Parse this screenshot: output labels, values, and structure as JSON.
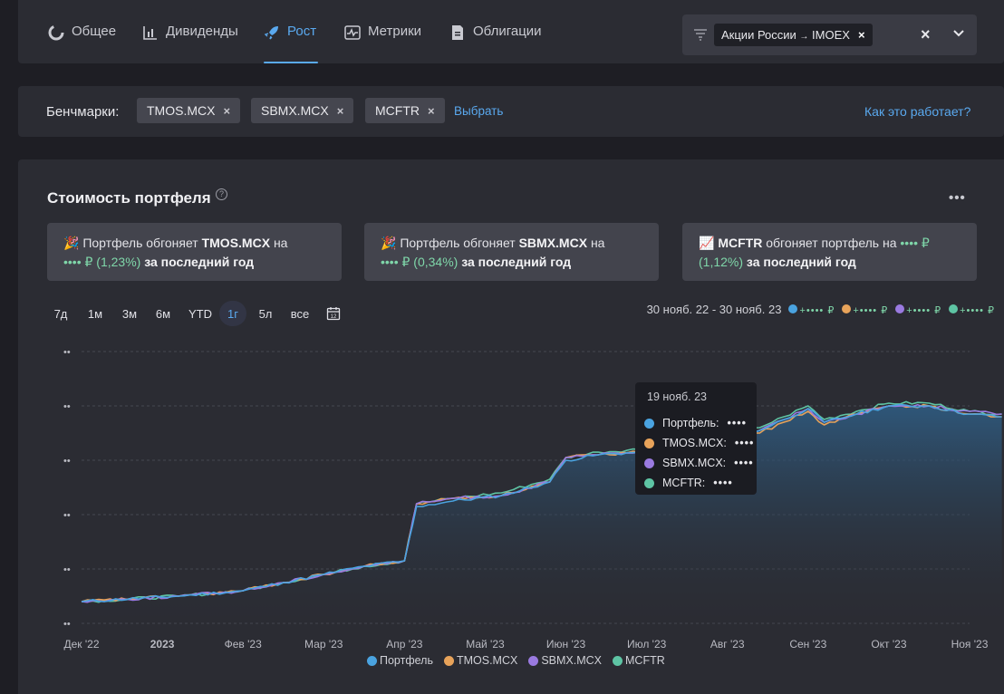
{
  "nav": {
    "tabs": [
      {
        "label": "Общее",
        "icon": "donut-chart-icon"
      },
      {
        "label": "Дивиденды",
        "icon": "bar-chart-icon"
      },
      {
        "label": "Рост",
        "icon": "rocket-icon"
      },
      {
        "label": "Метрики",
        "icon": "pulse-icon"
      },
      {
        "label": "Облигации",
        "icon": "document-icon"
      }
    ],
    "active_tab": "Рост",
    "filter": {
      "label": "Акции России",
      "arrow": "→",
      "suffix": "IMOEX",
      "chip_close": "×",
      "clear": "×"
    }
  },
  "benchmarks": {
    "label": "Бенчмарки:",
    "chips": [
      "TMOS.MCX",
      "SBMX.MCX",
      "MCFTR"
    ],
    "chip_close": "×",
    "select_link": "Выбрать",
    "help_link": "Как это работает?"
  },
  "portfolio": {
    "title": "Стоимость портфеля",
    "help": "?",
    "more": "•••",
    "cards": [
      {
        "emoji": "🎉",
        "prefix": "Портфель обгоняет",
        "ticker": "TMOS.MCX",
        "mid": "на",
        "amount": "•••• ₽",
        "pct": "(1,23%)",
        "suffix": "за последний год"
      },
      {
        "emoji": "🎉",
        "prefix": "Портфель обгоняет",
        "ticker": "SBMX.MCX",
        "mid": "на",
        "amount": "•••• ₽",
        "pct": "(0,34%)",
        "suffix": "за последний год"
      },
      {
        "emoji": "📈",
        "prefix": "",
        "ticker": "MCFTR",
        "mid": "обгоняет портфель на",
        "amount": "•••• ₽",
        "pct": "(1,12%)",
        "suffix": "за последний год"
      }
    ],
    "periods": [
      "7д",
      "1м",
      "3м",
      "6м",
      "YTD",
      "1г",
      "5л",
      "все"
    ],
    "active_period": "1г",
    "date_range": "30 нояб. 22 - 30 нояб. 23",
    "masked_value": "+•••• ₽"
  },
  "colors": {
    "portfolio": "#4aa3e0",
    "tmos": "#e8a35a",
    "sbmx": "#9a7ae0",
    "mcftr": "#5ec4a4",
    "accent": "#5aa9ef",
    "positive": "#7fd6a9"
  },
  "tooltip": {
    "date": "19 нояб. 23",
    "rows": [
      {
        "label": "Портфель:",
        "value": "••••"
      },
      {
        "label": "TMOS.MCX:",
        "value": "••••"
      },
      {
        "label": "SBMX.MCX:",
        "value": "••••"
      },
      {
        "label": "MCFTR:",
        "value": "••••"
      }
    ]
  },
  "chart_data": {
    "type": "line",
    "title": "",
    "x_ticks": [
      "Дек '22",
      "2023",
      "Фев '23",
      "Мар '23",
      "Апр '23",
      "Май '23",
      "Июн '23",
      "Июл '23",
      "Авг '23",
      "Сен '23",
      "Окт '23",
      "Ноя '23"
    ],
    "y_ticks": [
      "••",
      "••",
      "••",
      "••",
      "••",
      "••"
    ],
    "y_range": [
      0,
      100
    ],
    "legend_position": "bottom",
    "grid": true,
    "anchor_x": [
      0,
      1.2,
      2,
      2.5,
      3,
      3.5,
      4.0,
      4.15,
      4.6,
      5.2,
      5.8,
      6.0,
      6.4,
      6.9,
      7.05,
      7.1,
      7.5,
      8.0,
      8.4,
      8.7,
      9.0,
      9.2,
      9.6,
      10.0,
      10.5,
      11.0,
      11.4
    ],
    "series": [
      {
        "name": "Портфель",
        "values": [
          8,
          10,
          12,
          15,
          18,
          21,
          23,
          43,
          45,
          47,
          52,
          60,
          62,
          63,
          53,
          64,
          66,
          68,
          71,
          75,
          79,
          74,
          77,
          80,
          80,
          77,
          76
        ]
      },
      {
        "name": "TMOS.MCX",
        "values": [
          8,
          10,
          12,
          15,
          18,
          21,
          23,
          44,
          46,
          47,
          52,
          61,
          62,
          63,
          53,
          64,
          66,
          68,
          70,
          74,
          78,
          73,
          77,
          80,
          80,
          77,
          76
        ]
      },
      {
        "name": "SBMX.MCX",
        "values": [
          8,
          10,
          12,
          15,
          18,
          21,
          23,
          44,
          46,
          47,
          52,
          61,
          62,
          63,
          53,
          64,
          66,
          68,
          71,
          75,
          79,
          74,
          77,
          80,
          80,
          78,
          77
        ]
      },
      {
        "name": "MCFTR",
        "values": [
          8,
          10,
          12,
          15,
          18,
          21,
          23,
          44,
          46,
          48,
          53,
          61,
          63,
          64,
          54,
          65,
          67,
          69,
          72,
          76,
          80,
          75,
          78,
          81,
          81,
          78,
          77
        ]
      }
    ]
  }
}
